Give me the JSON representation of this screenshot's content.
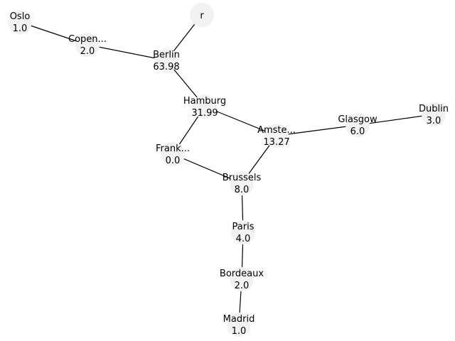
{
  "graph": {
    "node_color": "#f2f2f2",
    "edge_color": "#000000",
    "nodes": [
      {
        "id": "r",
        "label": "r",
        "value": ""
      },
      {
        "id": "oslo",
        "label": "Oslo",
        "value": "1.0"
      },
      {
        "id": "copen",
        "label": "Copen...",
        "value": "2.0"
      },
      {
        "id": "berlin",
        "label": "Berlin",
        "value": "63.98"
      },
      {
        "id": "hamburg",
        "label": "Hamburg",
        "value": "31.99"
      },
      {
        "id": "amste",
        "label": "Amste...",
        "value": "13.27"
      },
      {
        "id": "glasgow",
        "label": "Glasgow",
        "value": "6.0"
      },
      {
        "id": "dublin",
        "label": "Dublin",
        "value": "3.0"
      },
      {
        "id": "frank",
        "label": "Frank...",
        "value": "0.0"
      },
      {
        "id": "brussels",
        "label": "Brussels",
        "value": "8.0"
      },
      {
        "id": "paris",
        "label": "Paris",
        "value": "4.0"
      },
      {
        "id": "bordeaux",
        "label": "Bordeaux",
        "value": "2.0"
      },
      {
        "id": "madrid",
        "label": "Madrid",
        "value": "1.0"
      }
    ],
    "edges": [
      [
        "oslo",
        "copen"
      ],
      [
        "copen",
        "berlin"
      ],
      [
        "r",
        "berlin"
      ],
      [
        "berlin",
        "hamburg"
      ],
      [
        "hamburg",
        "frank"
      ],
      [
        "hamburg",
        "amste"
      ],
      [
        "amste",
        "glasgow"
      ],
      [
        "glasgow",
        "dublin"
      ],
      [
        "amste",
        "brussels"
      ],
      [
        "frank",
        "brussels"
      ],
      [
        "brussels",
        "paris"
      ],
      [
        "paris",
        "bordeaux"
      ],
      [
        "bordeaux",
        "madrid"
      ]
    ]
  }
}
